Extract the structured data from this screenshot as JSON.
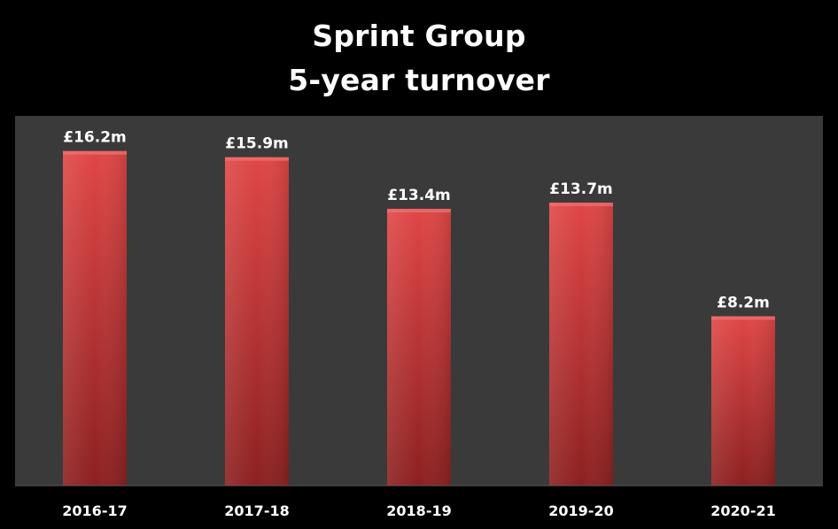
{
  "title_lines": [
    "Sprint Group",
    "5-year turnover"
  ],
  "chart_data": {
    "type": "bar",
    "title": "Sprint Group 5-year turnover",
    "categories": [
      "2016-17",
      "2017-18",
      "2018-19",
      "2019-20",
      "2020-21"
    ],
    "values": [
      16.2,
      15.9,
      13.4,
      13.7,
      8.2
    ],
    "data_labels": [
      "£16.2m",
      "£15.9m",
      "£13.4m",
      "£13.7m",
      "£8.2m"
    ],
    "unit": "£m",
    "xlabel": "",
    "ylabel": "",
    "ylim": [
      0,
      18
    ],
    "grid": false,
    "legend": "none",
    "colors": {
      "background": "#000000",
      "plot_area": "#3a3a3a",
      "bar_top": "#e04646",
      "bar_bottom": "#8c2020",
      "text": "#ffffff"
    }
  }
}
